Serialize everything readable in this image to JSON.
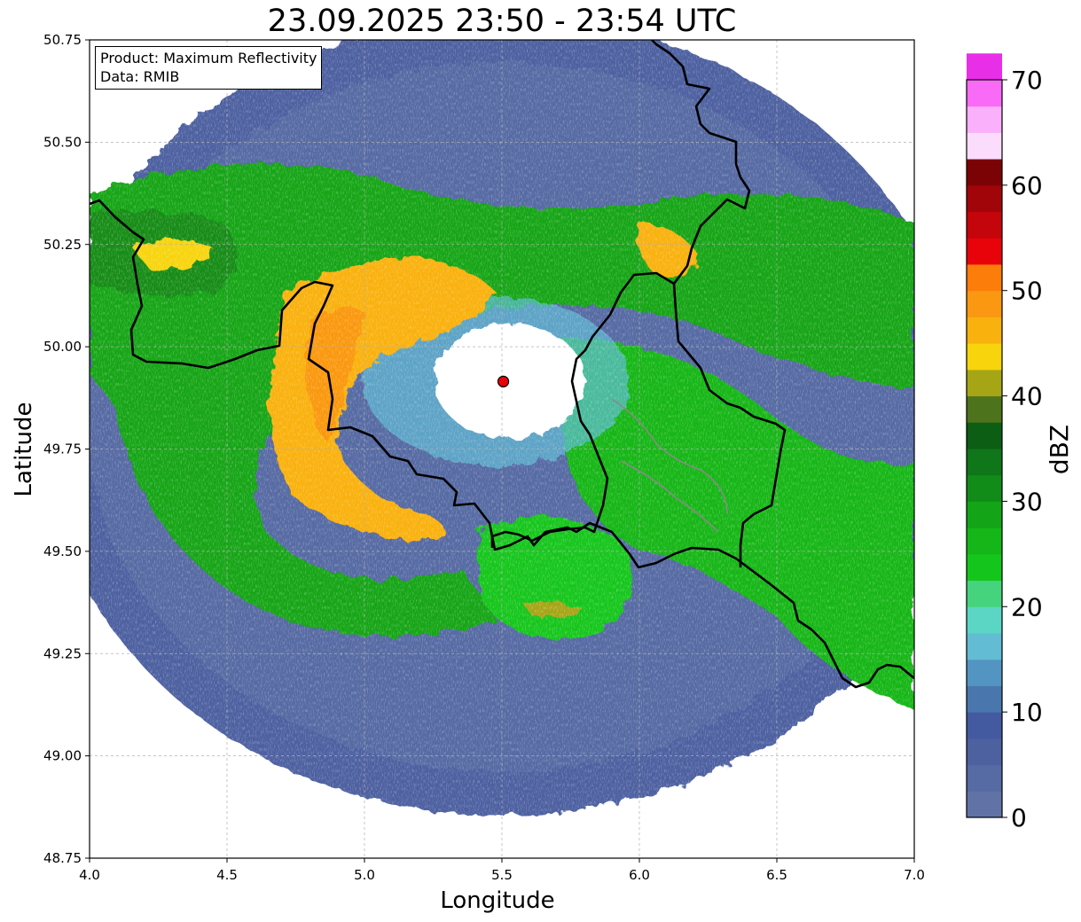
{
  "title": "23.09.2025 23:50 - 23:54 UTC",
  "info_box": {
    "product": "Product: Maximum Reflectivity",
    "data_source": "Data: RMIB"
  },
  "map": {
    "xlabel": "Longitude",
    "ylabel": "Latitude",
    "xlim": [
      4.0,
      7.0
    ],
    "ylim": [
      48.75,
      50.75
    ],
    "x_ticks": [
      "4.0",
      "4.5",
      "5.0",
      "5.5",
      "6.0",
      "6.5",
      "7.0"
    ],
    "y_ticks": [
      "48.75",
      "49.00",
      "49.25",
      "49.50",
      "49.75",
      "50.00",
      "50.25",
      "50.50",
      "50.75"
    ],
    "grid": "on (dashed, light grey)",
    "radar_site": {
      "lon": 5.505,
      "lat": 49.915,
      "marker": "red-circle"
    },
    "borders": "black country borders, grey river lines",
    "reflectivity_cells": [
      {
        "name": "west-arc",
        "lon": 4.85,
        "lat": 49.85,
        "max_dbz": 50
      },
      {
        "name": "north-band",
        "lon": 5.25,
        "lat": 50.2,
        "max_dbz": 45
      },
      {
        "name": "northeast-cell",
        "lon": 6.1,
        "lat": 50.23,
        "max_dbz": 45
      },
      {
        "name": "south-cell",
        "lon": 5.65,
        "lat": 49.37,
        "max_dbz": 40
      }
    ]
  },
  "colorbar": {
    "label": "dBZ",
    "tick_labels": [
      "0",
      "10",
      "20",
      "30",
      "40",
      "50",
      "60",
      "70"
    ],
    "min": 0,
    "max": 70,
    "step": 2.5,
    "colors": [
      "#6173a6",
      "#566aa3",
      "#4d60a0",
      "#435aa1",
      "#4a76ae",
      "#5395c2",
      "#61bcd4",
      "#5bd6c4",
      "#46d37e",
      "#14c61b",
      "#14b618",
      "#13a517",
      "#128c18",
      "#0f7619",
      "#0b5e13",
      "#4d731c",
      "#a6a516",
      "#f7d40b",
      "#f9b10d",
      "#fa9811",
      "#fc7d09",
      "#e8030a",
      "#c4050b",
      "#a20509",
      "#7b0305",
      "#fcdcfc",
      "#fbb0fb",
      "#f96af7",
      "#e92ee8"
    ]
  }
}
